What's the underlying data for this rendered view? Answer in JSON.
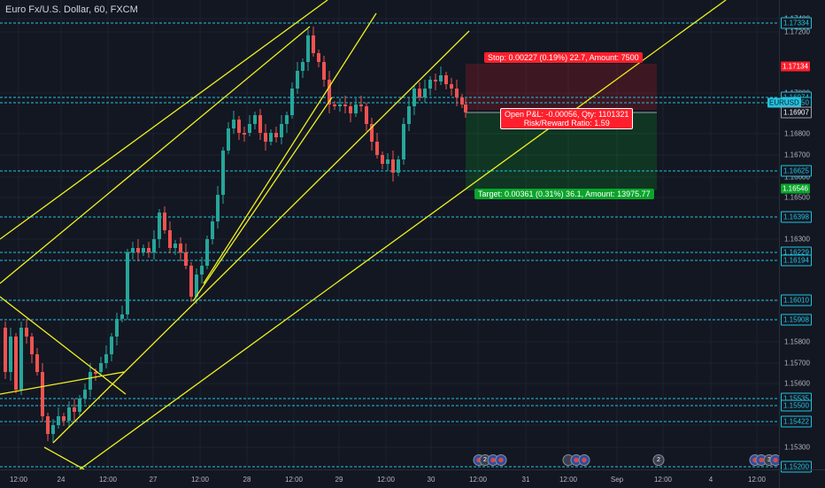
{
  "header": {
    "title": "Euro Fx/U.S. Dollar, 60, FXCM"
  },
  "price_axis": {
    "ticks": [
      "1.17400",
      "1.17200",
      "1.17000",
      "1.16800",
      "1.16700",
      "1.16600",
      "1.16500",
      "1.16300",
      "1.16000",
      "1.15800",
      "1.15700",
      "1.15600",
      "1.15400",
      "1.15300"
    ],
    "levels": [
      {
        "label": "1.17334",
        "kind": "level"
      },
      {
        "label": "1.17134",
        "kind": "stop"
      },
      {
        "label": "1.16974",
        "kind": "level"
      },
      {
        "label": "1.16950",
        "kind": "level"
      },
      {
        "label": "EURUSD",
        "kind": "symbol"
      },
      {
        "label": "1.16907",
        "kind": "current"
      },
      {
        "label": "1.16625",
        "kind": "level"
      },
      {
        "label": "1.16546",
        "kind": "target"
      },
      {
        "label": "1.16398",
        "kind": "level"
      },
      {
        "label": "1.16229",
        "kind": "level"
      },
      {
        "label": "1.16194",
        "kind": "level"
      },
      {
        "label": "1.16010",
        "kind": "level"
      },
      {
        "label": "1.15908",
        "kind": "level"
      },
      {
        "label": "1.15535",
        "kind": "level"
      },
      {
        "label": "1.15500",
        "kind": "level"
      },
      {
        "label": "1.15422",
        "kind": "level"
      },
      {
        "label": "1.15200",
        "kind": "level"
      }
    ]
  },
  "time_axis": {
    "ticks": [
      "12:00",
      "24",
      "12:00",
      "27",
      "12:00",
      "28",
      "12:00",
      "29",
      "12:00",
      "30",
      "12:00",
      "31",
      "12:00",
      "Sep",
      "12:00",
      "4",
      "12:00"
    ]
  },
  "trade": {
    "stop_label": "Stop: 0.00227 (0.19%) 22.7, Amount: 7500",
    "pnl_label": "Open P&L: -0.00056, Qty: 1101321",
    "rr_label": "Risk/Reward Ratio: 1.59",
    "target_label": "Target: 0.00361 (0.31%) 36.1, Amount: 13975.77"
  },
  "events": [
    {
      "label": "",
      "type": "flag"
    },
    {
      "label": "2",
      "type": "num"
    },
    {
      "label": "",
      "type": "flag"
    },
    {
      "label": "",
      "type": "flag"
    },
    {
      "label": "",
      "type": "num"
    },
    {
      "label": "",
      "type": "flag"
    },
    {
      "label": "",
      "type": "flag"
    },
    {
      "label": "2",
      "type": "num"
    },
    {
      "label": "",
      "type": "flag"
    },
    {
      "label": "",
      "type": "flag"
    },
    {
      "label": "3",
      "type": "num"
    },
    {
      "label": "",
      "type": "flag"
    }
  ],
  "colors": {
    "background": "#131722",
    "level_line": "#22c4e0",
    "trend_line": "#f0f01e",
    "bull": "#26a69a",
    "bear": "#ef5350",
    "stop": "#ff1f2c",
    "target": "#0aa52b",
    "text": "#b2b5be"
  }
}
